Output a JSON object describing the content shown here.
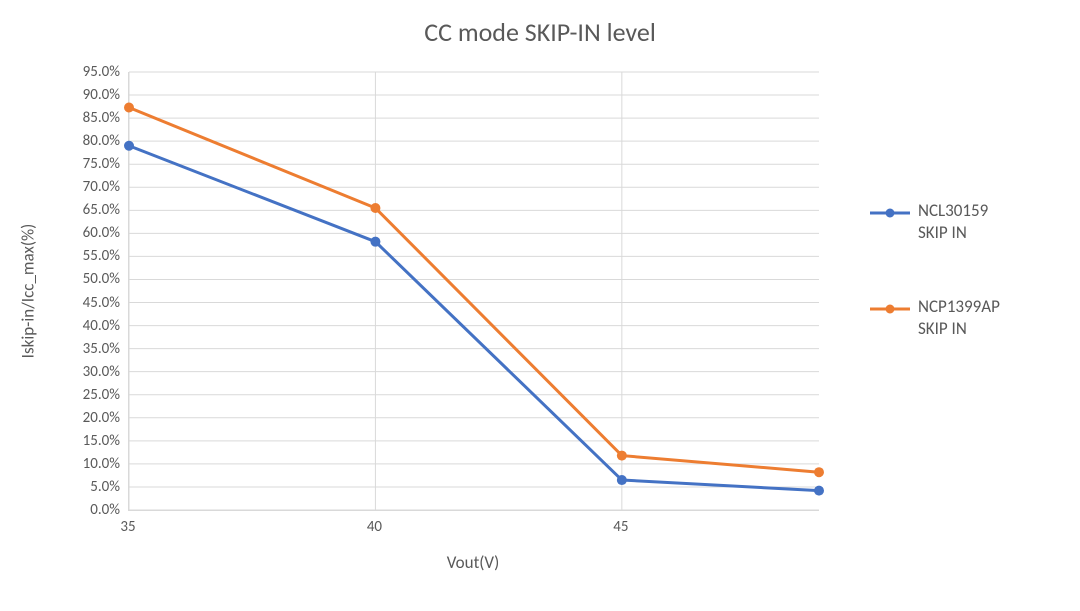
{
  "chart": {
    "type": "line",
    "title": "CC mode SKIP-IN level",
    "title_fontsize": 26,
    "x_axis": {
      "label": "Vout(V)",
      "label_fontsize": 17,
      "min": 35,
      "max": 49,
      "ticks": [
        35,
        40,
        45
      ],
      "tick_fontsize": 15
    },
    "y_axis": {
      "label": "Iskip-in/Icc_max(%)",
      "label_fontsize": 17,
      "min": 0,
      "max": 95,
      "tick_step": 5,
      "ticks": [
        0,
        5,
        10,
        15,
        20,
        25,
        30,
        35,
        40,
        45,
        50,
        55,
        60,
        65,
        70,
        75,
        80,
        85,
        90,
        95
      ],
      "tick_fontsize": 15,
      "format": "percent1"
    },
    "grid": {
      "x": true,
      "y": true,
      "color": "#d9d9d9"
    },
    "background_color": "#ffffff",
    "line_width": 3,
    "marker_radius": 5,
    "series": [
      {
        "name": "NCL30159\nSKIP IN",
        "color": "#4472c4",
        "x": [
          35,
          40,
          45,
          49
        ],
        "y": [
          79.0,
          58.2,
          6.5,
          4.2
        ]
      },
      {
        "name": "NCP1399AP\nSKIP IN",
        "color": "#ed7d31",
        "x": [
          35,
          40,
          45,
          49
        ],
        "y": [
          87.3,
          65.5,
          11.8,
          8.2
        ]
      }
    ],
    "legend": {
      "position": "right"
    }
  }
}
